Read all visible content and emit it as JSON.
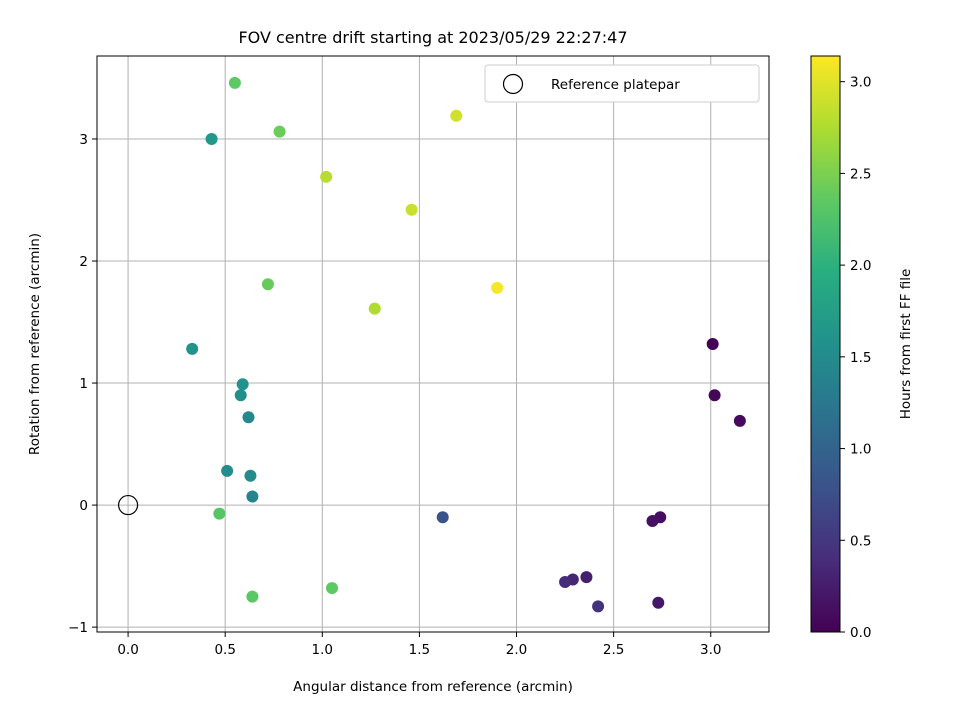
{
  "chart_data": {
    "type": "scatter",
    "title": "FOV centre drift starting at 2023/05/29 22:27:47",
    "xlabel": "Angular distance from reference (arcmin)",
    "ylabel": "Rotation from reference (arcmin)",
    "xlim": [
      -0.16,
      3.3
    ],
    "ylim": [
      -1.04,
      3.68
    ],
    "xticks": [
      "0.0",
      "0.5",
      "1.0",
      "1.5",
      "2.0",
      "2.5",
      "3.0"
    ],
    "xtick_values": [
      0,
      0.5,
      1.0,
      1.5,
      2.0,
      2.5,
      3.0
    ],
    "yticks": [
      "−1",
      "0",
      "1",
      "2",
      "3"
    ],
    "ytick_values": [
      -1,
      0,
      1,
      2,
      3
    ],
    "grid": true,
    "legend": {
      "label": "Reference platepar",
      "placement": "top-right"
    },
    "reference_point": {
      "x": 0,
      "y": 0
    },
    "colorbar": {
      "label": "Hours from first FF file",
      "range": [
        0,
        3.14
      ],
      "ticks": [
        "0.0",
        "0.5",
        "1.0",
        "1.5",
        "2.0",
        "2.5",
        "3.0"
      ],
      "tick_values": [
        0,
        0.5,
        1.0,
        1.5,
        2.0,
        2.5,
        3.0
      ],
      "colormap": "viridis"
    },
    "points": [
      {
        "x": 3.01,
        "y": 1.32,
        "t": 0.02
      },
      {
        "x": 3.02,
        "y": 0.9,
        "t": 0.05
      },
      {
        "x": 3.15,
        "y": 0.69,
        "t": 0.08
      },
      {
        "x": 2.74,
        "y": -0.1,
        "t": 0.12
      },
      {
        "x": 2.7,
        "y": -0.13,
        "t": 0.15
      },
      {
        "x": 2.73,
        "y": -0.8,
        "t": 0.2
      },
      {
        "x": 2.36,
        "y": -0.59,
        "t": 0.28
      },
      {
        "x": 2.29,
        "y": -0.61,
        "t": 0.33
      },
      {
        "x": 2.25,
        "y": -0.63,
        "t": 0.38
      },
      {
        "x": 2.42,
        "y": -0.83,
        "t": 0.45
      },
      {
        "x": 1.62,
        "y": -0.1,
        "t": 0.8
      },
      {
        "x": 0.64,
        "y": 0.07,
        "t": 1.4
      },
      {
        "x": 0.62,
        "y": 0.72,
        "t": 1.45
      },
      {
        "x": 0.63,
        "y": 0.24,
        "t": 1.5
      },
      {
        "x": 0.51,
        "y": 0.28,
        "t": 1.52
      },
      {
        "x": 0.58,
        "y": 0.9,
        "t": 1.55
      },
      {
        "x": 0.59,
        "y": 0.99,
        "t": 1.58
      },
      {
        "x": 0.33,
        "y": 1.28,
        "t": 1.6
      },
      {
        "x": 0.43,
        "y": 3.0,
        "t": 1.65
      },
      {
        "x": 0.47,
        "y": -0.07,
        "t": 2.3
      },
      {
        "x": 0.64,
        "y": -0.75,
        "t": 2.32
      },
      {
        "x": 1.05,
        "y": -0.68,
        "t": 2.35
      },
      {
        "x": 0.55,
        "y": 3.46,
        "t": 2.35
      },
      {
        "x": 0.72,
        "y": 1.81,
        "t": 2.4
      },
      {
        "x": 0.78,
        "y": 3.06,
        "t": 2.42
      },
      {
        "x": 1.27,
        "y": 1.61,
        "t": 2.75
      },
      {
        "x": 1.02,
        "y": 2.69,
        "t": 2.8
      },
      {
        "x": 1.46,
        "y": 2.42,
        "t": 2.88
      },
      {
        "x": 1.69,
        "y": 3.19,
        "t": 2.92
      },
      {
        "x": 1.9,
        "y": 1.78,
        "t": 3.1
      }
    ]
  }
}
